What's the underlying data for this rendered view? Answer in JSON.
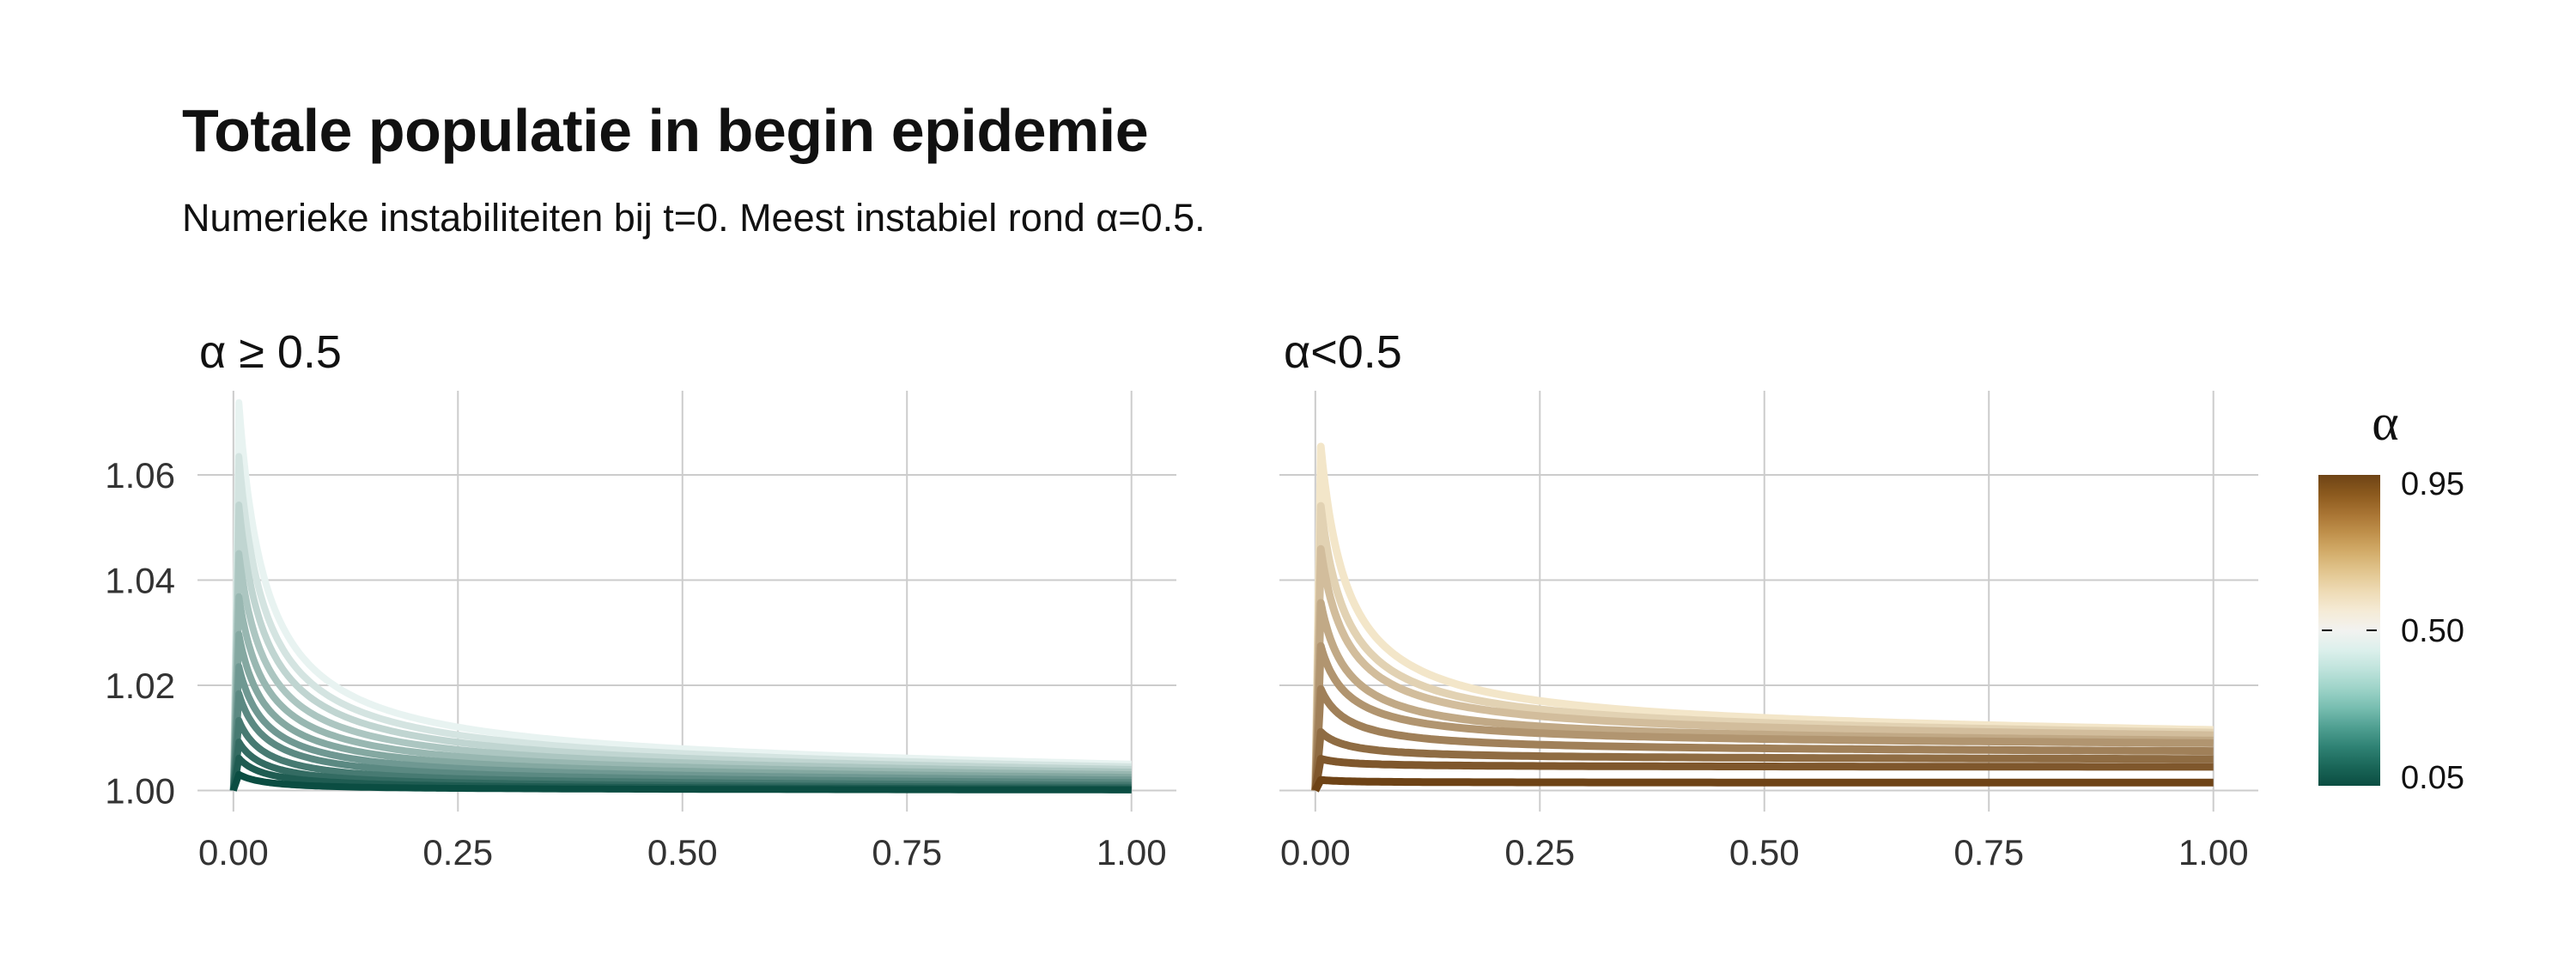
{
  "chart_data": {
    "type": "line",
    "title": "Totale populatie in begin epidemie",
    "subtitle": "Numerieke instabiliteiten bij t=0. Meest instabiel rond α=0.5.",
    "x_ticks": [
      "0.00",
      "0.25",
      "0.50",
      "0.75",
      "1.00"
    ],
    "y_ticks": [
      "1.00",
      "1.02",
      "1.04",
      "1.06"
    ],
    "xlim": [
      -0.04,
      1.05
    ],
    "ylim": [
      0.996,
      1.076
    ],
    "grid": true,
    "facets": [
      {
        "label": "α ≥ 0.5",
        "series": [
          {
            "alpha": 0.5,
            "peak": 1.072,
            "end": 1.005
          },
          {
            "alpha": 0.54,
            "peak": 1.062,
            "end": 1.0045
          },
          {
            "alpha": 0.58,
            "peak": 1.053,
            "end": 1.004
          },
          {
            "alpha": 0.62,
            "peak": 1.044,
            "end": 1.0035
          },
          {
            "alpha": 0.66,
            "peak": 1.036,
            "end": 1.003
          },
          {
            "alpha": 0.7,
            "peak": 1.029,
            "end": 1.0025
          },
          {
            "alpha": 0.74,
            "peak": 1.023,
            "end": 1.002
          },
          {
            "alpha": 0.78,
            "peak": 1.018,
            "end": 1.0015
          },
          {
            "alpha": 0.82,
            "peak": 1.013,
            "end": 1.001
          },
          {
            "alpha": 0.86,
            "peak": 1.009,
            "end": 1.0006
          },
          {
            "alpha": 0.9,
            "peak": 1.006,
            "end": 1.0003
          },
          {
            "alpha": 0.95,
            "peak": 1.003,
            "end": 1.0001
          }
        ]
      },
      {
        "label": "α<0.5",
        "series": [
          {
            "alpha": 0.45,
            "peak": 1.064,
            "end": 1.0115
          },
          {
            "alpha": 0.42,
            "peak": 1.053,
            "end": 1.011
          },
          {
            "alpha": 0.38,
            "peak": 1.045,
            "end": 1.0105
          },
          {
            "alpha": 0.34,
            "peak": 1.035,
            "end": 1.0095
          },
          {
            "alpha": 0.3,
            "peak": 1.027,
            "end": 1.009
          },
          {
            "alpha": 0.25,
            "peak": 1.019,
            "end": 1.0075
          },
          {
            "alpha": 0.2,
            "peak": 1.011,
            "end": 1.006
          },
          {
            "alpha": 0.15,
            "peak": 1.006,
            "end": 1.0045
          },
          {
            "alpha": 0.1,
            "peak": 1.002,
            "end": 1.0015
          }
        ]
      }
    ],
    "legend": {
      "title": "α",
      "position": "right",
      "labels": [
        "0.95",
        "0.50",
        "0.05"
      ],
      "values": [
        0.95,
        0.5,
        0.05
      ],
      "colors_high_to_low": [
        "#6e4316",
        "#8c5a1e",
        "#a87433",
        "#c0914c",
        "#d3ad6b",
        "#e2c690",
        "#eedbb5",
        "#f5ebd6",
        "#f2f2f0",
        "#dcf0ec",
        "#bfe3dc",
        "#9dd3c8",
        "#77bdb0",
        "#4f9f91",
        "#2f8274",
        "#1a6658",
        "#0b4d42"
      ]
    },
    "colors": {
      "teal_light": "#e8f3f1",
      "teal_dark": "#0b4d42",
      "brown_light": "#f3e6c9",
      "brown_dark": "#6e4316",
      "grid": "#cccccc"
    }
  }
}
